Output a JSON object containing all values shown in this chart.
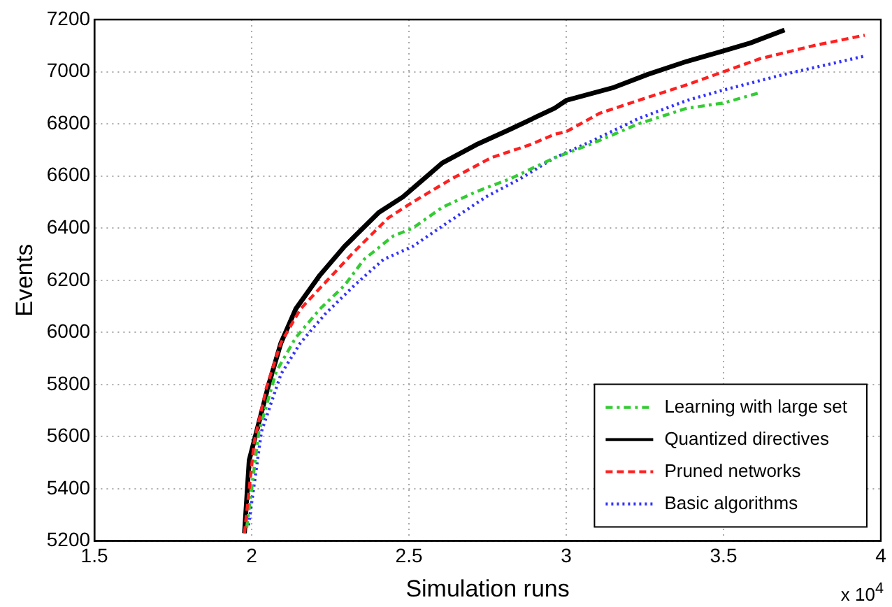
{
  "chart_data": {
    "type": "line",
    "xlabel": "Simulation runs",
    "ylabel": "Events",
    "annotations": [
      "x 10$^{4}$"
    ],
    "xlim": [
      1.5,
      4
    ],
    "xticks": [
      1.5,
      2,
      2.5,
      3,
      3.5,
      4
    ],
    "ylim": [
      5200,
      7200
    ],
    "yticks": [
      5200,
      5400,
      5600,
      5800,
      6000,
      6200,
      6400,
      6600,
      6800,
      7000,
      7200
    ],
    "grid": true,
    "legend": "bottom right",
    "marker": "none",
    "series": [
      {
        "name": "Learning with large set",
        "color": "#33cc33",
        "line_style": "dashdot",
        "x": [
          1.984,
          2.023,
          2.078,
          2.14,
          2.217,
          2.295,
          2.357,
          2.45,
          2.512,
          2.606,
          2.714,
          2.823,
          2.963,
          3.074,
          3.229,
          3.384,
          3.5,
          3.616
        ],
        "values": [
          5250,
          5620,
          5850,
          5980,
          6090,
          6180,
          6280,
          6370,
          6400,
          6480,
          6540,
          6590,
          6670,
          6720,
          6800,
          6860,
          6880,
          6920
        ]
      },
      {
        "name": "Quantized directives",
        "color": "#000000",
        "line_style": "solid",
        "x": [
          1.977,
          1.992,
          2.054,
          2.093,
          2.14,
          2.217,
          2.295,
          2.404,
          2.481,
          2.606,
          2.714,
          2.823,
          2.963,
          3.0,
          3.152,
          3.26,
          3.384,
          3.5,
          3.585,
          3.694
        ],
        "values": [
          5230,
          5510,
          5800,
          5960,
          6090,
          6220,
          6330,
          6460,
          6520,
          6650,
          6720,
          6780,
          6860,
          6890,
          6940,
          6990,
          7040,
          7080,
          7110,
          7160
        ]
      },
      {
        "name": "Pruned networks",
        "color": "#ff2020",
        "line_style": "dashed",
        "x": [
          1.977,
          2.008,
          2.047,
          2.093,
          2.155,
          2.225,
          2.326,
          2.435,
          2.512,
          2.637,
          2.761,
          2.885,
          2.963,
          3.0,
          3.105,
          3.229,
          3.384,
          3.5,
          3.616,
          3.786,
          3.949
        ],
        "values": [
          5230,
          5580,
          5790,
          5960,
          6090,
          6180,
          6310,
          6440,
          6500,
          6590,
          6670,
          6720,
          6760,
          6770,
          6840,
          6890,
          6950,
          7000,
          7050,
          7100,
          7140
        ]
      },
      {
        "name": "Basic algorithms",
        "color": "#3333ff",
        "line_style": "dotted",
        "x": [
          1.99,
          2.031,
          2.093,
          2.155,
          2.233,
          2.326,
          2.419,
          2.512,
          2.621,
          2.745,
          2.854,
          2.963,
          3.074,
          3.229,
          3.384,
          3.5,
          3.694,
          3.949
        ],
        "values": [
          5260,
          5620,
          5840,
          5960,
          6070,
          6180,
          6280,
          6330,
          6420,
          6520,
          6590,
          6670,
          6730,
          6820,
          6890,
          6930,
          6990,
          7060
        ]
      }
    ]
  }
}
